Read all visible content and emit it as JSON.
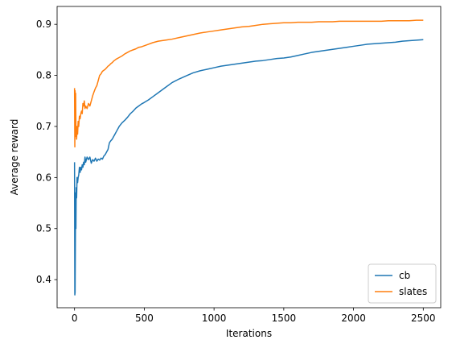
{
  "chart_data": {
    "type": "line",
    "title": "",
    "xlabel": "Iterations",
    "ylabel": "Average reward",
    "xlim": [
      -125,
      2625
    ],
    "ylim": [
      0.345,
      0.935
    ],
    "xticks": [
      0,
      500,
      1000,
      1500,
      2000,
      2500
    ],
    "yticks": [
      0.4,
      0.5,
      0.6,
      0.7,
      0.8,
      0.9
    ],
    "xtick_labels": [
      "0",
      "500",
      "1000",
      "1500",
      "2000",
      "2500"
    ],
    "ytick_labels": [
      "0.4",
      "0.5",
      "0.6",
      "0.7",
      "0.8",
      "0.9"
    ],
    "grid": false,
    "legend_position": "lower-right",
    "series": [
      {
        "name": "cb",
        "color": "#1f77b4",
        "x": [
          0,
          2,
          4,
          6,
          8,
          10,
          12,
          15,
          18,
          22,
          26,
          30,
          35,
          40,
          45,
          50,
          55,
          60,
          65,
          70,
          75,
          80,
          90,
          100,
          110,
          120,
          130,
          140,
          150,
          160,
          170,
          180,
          190,
          200,
          210,
          220,
          230,
          240,
          250,
          260,
          270,
          280,
          290,
          300,
          320,
          340,
          360,
          380,
          400,
          420,
          440,
          460,
          480,
          500,
          530,
          560,
          600,
          650,
          700,
          750,
          800,
          850,
          900,
          950,
          1000,
          1050,
          1100,
          1150,
          1200,
          1250,
          1300,
          1350,
          1400,
          1450,
          1500,
          1550,
          1600,
          1650,
          1700,
          1750,
          1800,
          1850,
          1900,
          1950,
          2000,
          2050,
          2100,
          2150,
          2200,
          2250,
          2300,
          2350,
          2400,
          2450,
          2500
        ],
        "values": [
          0.63,
          0.37,
          0.375,
          0.47,
          0.57,
          0.5,
          0.58,
          0.56,
          0.6,
          0.59,
          0.6,
          0.605,
          0.62,
          0.61,
          0.62,
          0.615,
          0.625,
          0.62,
          0.63,
          0.625,
          0.64,
          0.63,
          0.64,
          0.635,
          0.64,
          0.628,
          0.635,
          0.632,
          0.638,
          0.632,
          0.636,
          0.634,
          0.638,
          0.636,
          0.642,
          0.645,
          0.65,
          0.655,
          0.668,
          0.672,
          0.675,
          0.68,
          0.685,
          0.69,
          0.7,
          0.707,
          0.712,
          0.718,
          0.725,
          0.73,
          0.736,
          0.74,
          0.744,
          0.747,
          0.752,
          0.758,
          0.766,
          0.776,
          0.786,
          0.793,
          0.799,
          0.805,
          0.809,
          0.812,
          0.815,
          0.818,
          0.82,
          0.822,
          0.824,
          0.826,
          0.828,
          0.829,
          0.831,
          0.833,
          0.834,
          0.836,
          0.839,
          0.842,
          0.845,
          0.847,
          0.849,
          0.851,
          0.853,
          0.855,
          0.857,
          0.859,
          0.861,
          0.862,
          0.863,
          0.864,
          0.865,
          0.867,
          0.868,
          0.869,
          0.87
        ]
      },
      {
        "name": "slates",
        "color": "#ff7f0e",
        "x": [
          0,
          2,
          4,
          6,
          8,
          10,
          12,
          15,
          18,
          22,
          26,
          30,
          35,
          40,
          45,
          50,
          55,
          60,
          65,
          70,
          75,
          80,
          90,
          100,
          110,
          120,
          130,
          140,
          150,
          160,
          170,
          180,
          190,
          200,
          210,
          220,
          230,
          240,
          250,
          260,
          270,
          280,
          290,
          300,
          320,
          340,
          360,
          380,
          400,
          420,
          440,
          460,
          480,
          500,
          530,
          560,
          600,
          650,
          700,
          750,
          800,
          850,
          900,
          950,
          1000,
          1050,
          1100,
          1150,
          1200,
          1250,
          1300,
          1350,
          1400,
          1450,
          1500,
          1550,
          1600,
          1650,
          1700,
          1750,
          1800,
          1850,
          1900,
          1950,
          2000,
          2050,
          2100,
          2150,
          2200,
          2250,
          2300,
          2350,
          2400,
          2450,
          2500
        ],
        "values": [
          0.775,
          0.66,
          0.77,
          0.68,
          0.765,
          0.7,
          0.69,
          0.675,
          0.7,
          0.685,
          0.71,
          0.7,
          0.72,
          0.715,
          0.725,
          0.73,
          0.725,
          0.745,
          0.74,
          0.75,
          0.735,
          0.74,
          0.735,
          0.745,
          0.74,
          0.75,
          0.76,
          0.768,
          0.775,
          0.78,
          0.79,
          0.8,
          0.803,
          0.808,
          0.81,
          0.812,
          0.815,
          0.818,
          0.82,
          0.823,
          0.825,
          0.828,
          0.83,
          0.832,
          0.835,
          0.838,
          0.842,
          0.845,
          0.848,
          0.85,
          0.852,
          0.855,
          0.856,
          0.858,
          0.861,
          0.864,
          0.867,
          0.869,
          0.871,
          0.874,
          0.877,
          0.88,
          0.883,
          0.885,
          0.887,
          0.889,
          0.891,
          0.893,
          0.895,
          0.896,
          0.898,
          0.9,
          0.901,
          0.902,
          0.903,
          0.903,
          0.904,
          0.904,
          0.904,
          0.905,
          0.905,
          0.905,
          0.906,
          0.906,
          0.906,
          0.906,
          0.906,
          0.906,
          0.906,
          0.907,
          0.907,
          0.907,
          0.907,
          0.908,
          0.908
        ]
      }
    ]
  }
}
